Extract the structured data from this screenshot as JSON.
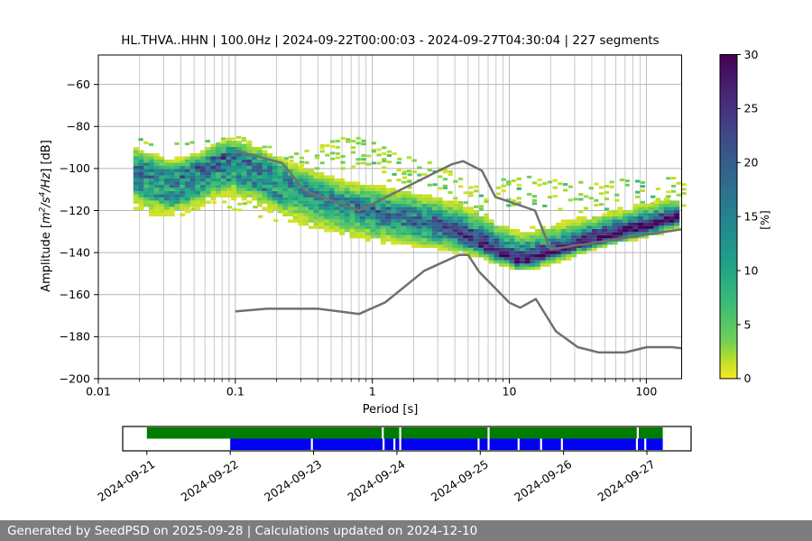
{
  "header": {
    "title": "HL.THVA..HHN | 100.0Hz | 2024-09-22T00:00:03 - 2024-09-27T04:30:04 | 227 segments"
  },
  "footer": {
    "text": "Generated by SeedPSD on 2025-09-28 | Calculations updated on 2024-12-10"
  },
  "chart_data": {
    "type": "heatmap",
    "title": "HL.THVA..HHN | 100.0Hz | 2024-09-22T00:00:03 - 2024-09-27T04:30:04 | 227 segments",
    "xlabel": "Period [s]",
    "ylabel": "Amplitude [m2/s4/Hz] [dB]",
    "ylabel_segments": [
      {
        "text": "Amplitude [",
        "style": "plain"
      },
      {
        "text": "m",
        "style": "math"
      },
      {
        "text": "2",
        "style": "sup"
      },
      {
        "text": "/s",
        "style": "math"
      },
      {
        "text": "4",
        "style": "sup"
      },
      {
        "text": "/Hz",
        "style": "math"
      },
      {
        "text": "] [dB]",
        "style": "plain"
      }
    ],
    "x_scale": "log",
    "xlim": [
      0.01,
      181
    ],
    "ylim": [
      -200,
      -46
    ],
    "x_tick_values": [
      0.01,
      0.1,
      1,
      10,
      100
    ],
    "x_tick_labels": [
      "0.01",
      "0.1",
      "1",
      "10",
      "100"
    ],
    "y_tick_values": [
      -60,
      -80,
      -100,
      -120,
      -140,
      -160,
      -180,
      -200
    ],
    "y_tick_labels": [
      "−60",
      "−80",
      "−100",
      "−120",
      "−140",
      "−160",
      "−180",
      "−200"
    ],
    "grid": true,
    "grid_color": "#b4b4b4",
    "colorbar": {
      "label": "[%]",
      "range": [
        0,
        30
      ],
      "tick_values": [
        0,
        5,
        10,
        15,
        20,
        25,
        30
      ],
      "tick_labels": [
        "0",
        "5",
        "10",
        "15",
        "20",
        "25",
        "30"
      ],
      "colormap": "viridis_r"
    },
    "psd_mode_line": [
      [
        0.018,
        -98.5,
        3.4,
        8.0,
        16
      ],
      [
        0.025,
        -102.0,
        3.4,
        8.0,
        16
      ],
      [
        0.035,
        -104.5,
        3.2,
        7.5,
        16
      ],
      [
        0.05,
        -101.0,
        3.2,
        7.5,
        17
      ],
      [
        0.07,
        -96.5,
        3.2,
        7.5,
        18
      ],
      [
        0.095,
        -94.0,
        3.2,
        8.0,
        18
      ],
      [
        0.13,
        -97.0,
        3.4,
        8.0,
        16
      ],
      [
        0.18,
        -101.5,
        3.6,
        8.0,
        14
      ],
      [
        0.26,
        -107.0,
        4.0,
        7.5,
        13
      ],
      [
        0.4,
        -112.5,
        4.2,
        7.0,
        13
      ],
      [
        0.6,
        -116.5,
        4.2,
        6.5,
        14
      ],
      [
        0.9,
        -119.5,
        4.5,
        6.0,
        16
      ],
      [
        1.3,
        -121.5,
        4.5,
        5.5,
        18
      ],
      [
        2.0,
        -124.0,
        4.8,
        5.0,
        19
      ],
      [
        3.0,
        -127.5,
        5.0,
        4.5,
        21
      ],
      [
        4.5,
        -131.5,
        5.2,
        3.5,
        23
      ],
      [
        6.5,
        -136.5,
        5.2,
        2.6,
        26
      ],
      [
        9.0,
        -141.0,
        5.0,
        2.2,
        27
      ],
      [
        12.0,
        -144.0,
        5.0,
        2.0,
        28
      ],
      [
        16.0,
        -142.5,
        4.8,
        2.0,
        28
      ],
      [
        22.0,
        -139.5,
        4.5,
        2.0,
        28
      ],
      [
        32.0,
        -136.0,
        4.2,
        2.0,
        29
      ],
      [
        48.0,
        -132.5,
        4.0,
        2.0,
        29
      ],
      [
        75.0,
        -129.5,
        3.8,
        2.0,
        30
      ],
      [
        120.0,
        -126.5,
        3.6,
        2.0,
        30
      ],
      [
        181.0,
        -123.0,
        3.4,
        2.0,
        30
      ]
    ],
    "secondary_mode": {
      "range": [
        0.018,
        0.24
      ],
      "offset_db": -9.5,
      "sigma": 2.8,
      "peak_pct": 13
    },
    "outlier_wisps": [
      {
        "name": "left-speckles",
        "span": [
          0.018,
          0.22
        ],
        "fill": 0.28,
        "offsets": [
          0,
          2
        ],
        "points": [
          [
            0.018,
            -86.5
          ],
          [
            0.03,
            -89.5
          ],
          [
            0.05,
            -88
          ],
          [
            0.08,
            -85.5
          ],
          [
            0.11,
            -85
          ],
          [
            0.16,
            -88
          ],
          [
            0.22,
            -93
          ]
        ]
      },
      {
        "name": "microseism-arcs",
        "span": [
          0.19,
          1.9
        ],
        "fill": 0.62,
        "offsets": [
          0,
          2,
          4,
          6,
          8.5,
          11,
          13.5
        ],
        "points": [
          [
            0.19,
            -99.5
          ],
          [
            0.28,
            -93.5
          ],
          [
            0.42,
            -88.5
          ],
          [
            0.6,
            -86
          ],
          [
            0.8,
            -86.5
          ],
          [
            1.05,
            -89
          ],
          [
            1.4,
            -93
          ],
          [
            1.9,
            -97.5
          ]
        ]
      },
      {
        "name": "mid-period-wisps",
        "span": [
          1.5,
          7
        ],
        "fill": 0.55,
        "offsets": [
          0,
          2.5,
          5,
          7.5,
          10,
          12
        ],
        "points": [
          [
            1.5,
            -95
          ],
          [
            2.2,
            -96.5
          ],
          [
            3.2,
            -99.5
          ],
          [
            4.2,
            -102.5
          ],
          [
            5.2,
            -106
          ],
          [
            7,
            -112
          ]
        ]
      },
      {
        "name": "long-period-wisps",
        "span": [
          8,
          181
        ],
        "fill": 0.6,
        "offsets": [
          0,
          2.5,
          5,
          7.5,
          10,
          12.5
        ],
        "points": [
          [
            8,
            -107
          ],
          [
            12,
            -104.5
          ],
          [
            18,
            -105.5
          ],
          [
            28,
            -108
          ],
          [
            45,
            -107
          ],
          [
            70,
            -105.5
          ],
          [
            110,
            -107
          ],
          [
            181,
            -104.5
          ]
        ]
      },
      {
        "name": "below-band-fringe",
        "span": [
          0.02,
          0.2
        ],
        "fill": 0.2,
        "offsets": [
          0,
          3
        ],
        "points": [
          [
            0.02,
            -119
          ],
          [
            0.05,
            -117
          ],
          [
            0.1,
            -116
          ],
          [
            0.2,
            -122
          ]
        ]
      }
    ],
    "noise_models": {
      "color": "#707070",
      "nhnm": [
        [
          0.1,
          -91.5
        ],
        [
          0.22,
          -97.4
        ],
        [
          0.32,
          -110.5
        ],
        [
          0.8,
          -120.0
        ],
        [
          3.8,
          -98.0
        ],
        [
          4.6,
          -96.5
        ],
        [
          6.3,
          -101.0
        ],
        [
          7.9,
          -113.5
        ],
        [
          15.4,
          -120.0
        ],
        [
          20.0,
          -138.5
        ],
        [
          181.0,
          -128.9
        ]
      ],
      "nlnm": [
        [
          0.1,
          -168.0
        ],
        [
          0.17,
          -166.7
        ],
        [
          0.4,
          -166.7
        ],
        [
          0.8,
          -169.2
        ],
        [
          1.24,
          -163.7
        ],
        [
          2.4,
          -148.6
        ],
        [
          4.3,
          -141.1
        ],
        [
          5.0,
          -141.1
        ],
        [
          6.0,
          -149.0
        ],
        [
          10.0,
          -163.8
        ],
        [
          12.0,
          -166.2
        ],
        [
          15.6,
          -162.1
        ],
        [
          21.9,
          -177.5
        ],
        [
          31.6,
          -185.0
        ],
        [
          45.0,
          -187.5
        ],
        [
          70.0,
          -187.5
        ],
        [
          101.0,
          -185.0
        ],
        [
          154.0,
          -185.0
        ],
        [
          181.0,
          -185.5
        ]
      ]
    }
  },
  "availability": {
    "day_tick_labels": [
      "2024-09-21",
      "2024-09-22",
      "2024-09-23",
      "2024-09-24",
      "2024-09-25",
      "2024-09-26",
      "2024-09-27"
    ],
    "axis_range_days": [
      -0.29,
      6.53
    ],
    "rows": [
      {
        "name": "data-coverage",
        "color": "#007c00",
        "start_day": 0.0,
        "end_day": 6.19,
        "gap_days": [
          2.83,
          3.04,
          4.1,
          5.89
        ]
      },
      {
        "name": "psd-coverage",
        "color": "#0000f2",
        "start_day": 1.0,
        "end_day": 6.19,
        "gap_days": [
          1.98,
          2.84,
          2.97,
          3.04,
          3.98,
          4.1,
          4.46,
          4.73,
          4.98,
          5.88,
          5.98
        ]
      }
    ]
  }
}
